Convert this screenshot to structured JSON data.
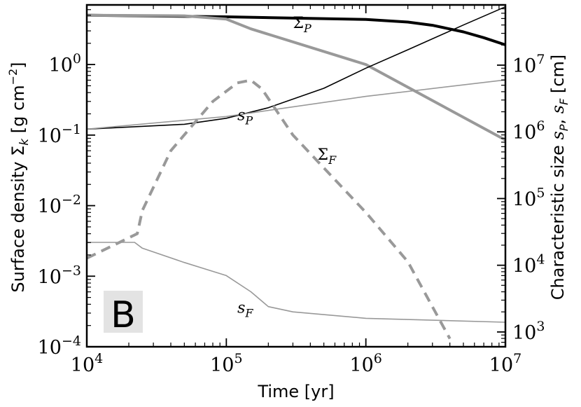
{
  "chart_data": {
    "type": "line",
    "panel_label": "B",
    "xlabel": "Time [yr]",
    "x_scale": "log",
    "xlim": [
      10000,
      10000000
    ],
    "x_ticks": [
      {
        "value": 10000,
        "base": "10",
        "exp": "4"
      },
      {
        "value": 100000,
        "base": "10",
        "exp": "5"
      },
      {
        "value": 1000000,
        "base": "10",
        "exp": "6"
      },
      {
        "value": 10000000,
        "base": "10",
        "exp": "7"
      }
    ],
    "y_left": {
      "label": "Surface density Σ_k [g cm^-2]",
      "label_parts": {
        "main": "Surface density Σ",
        "sub": "k",
        "bracket": " [g cm",
        "sup": "−2",
        "close": "]"
      },
      "scale": "log",
      "lim": [
        0.0001,
        7
      ],
      "ticks": [
        {
          "value": 1,
          "base": "10",
          "exp": "0"
        },
        {
          "value": 0.1,
          "base": "10",
          "exp": "−1"
        },
        {
          "value": 0.01,
          "base": "10",
          "exp": "−2"
        },
        {
          "value": 0.001,
          "base": "10",
          "exp": "−3"
        },
        {
          "value": 0.0001,
          "base": "10",
          "exp": "−4"
        }
      ]
    },
    "y_right": {
      "label": "Characteristic size s_P, s_F [cm]",
      "label_parts": {
        "main": "Characteristic size ",
        "var1": "s",
        "sub1": "P",
        "comma": ", ",
        "var2": "s",
        "sub2": "F",
        "bracket": " [cm]"
      },
      "scale": "log",
      "lim": [
        600,
        80000000
      ],
      "ticks": [
        {
          "value": 1000,
          "base": "10",
          "exp": "3"
        },
        {
          "value": 10000,
          "base": "10",
          "exp": "4"
        },
        {
          "value": 100000,
          "base": "10",
          "exp": "5"
        },
        {
          "value": 1000000,
          "base": "10",
          "exp": "6"
        },
        {
          "value": 10000000,
          "base": "10",
          "exp": "7"
        }
      ]
    },
    "series": [
      {
        "name": "Σ_P",
        "label_main": "Σ",
        "label_sub": "P",
        "axis": "left",
        "color": "#000000",
        "width": 4.0,
        "dash": "",
        "x": [
          10000,
          100000,
          1000000,
          2000000,
          3000000,
          5000000,
          7000000,
          10000000
        ],
        "y": [
          5.0,
          4.75,
          4.35,
          4.0,
          3.6,
          2.9,
          2.4,
          1.9
        ]
      },
      {
        "name": "Σ_P (gray)",
        "axis": "left",
        "color": "#999999",
        "width": 4.0,
        "dash": "",
        "x": [
          10000,
          50000,
          100000,
          150000,
          1000000,
          10000000
        ],
        "y": [
          5.0,
          4.9,
          4.4,
          3.2,
          1.0,
          0.085
        ]
      },
      {
        "name": "s_P",
        "label_main": "s",
        "label_sub": "P",
        "axis": "right",
        "color": "#000000",
        "width": 1.6,
        "dash": "",
        "x": [
          10000,
          50000,
          100000,
          200000,
          500000,
          1000000,
          2000000,
          5000000,
          10000000
        ],
        "y": [
          1100000,
          1300000,
          1600000,
          2300000,
          4500000,
          9000000,
          17000000,
          40000000,
          75000000
        ]
      },
      {
        "name": "s_P (gray)",
        "axis": "right",
        "color": "#999999",
        "width": 1.6,
        "dash": "",
        "x": [
          10000,
          100000,
          1000000,
          10000000
        ],
        "y": [
          1100000,
          1700000,
          3400000,
          6000000
        ]
      },
      {
        "name": "Σ_F",
        "label_main": "Σ",
        "label_sub": "F",
        "axis": "left",
        "color": "#999999",
        "width": 4.0,
        "dash": "14,9",
        "x": [
          10000,
          20000,
          23000,
          25000,
          40000,
          80000,
          120000,
          150000,
          180000,
          300000,
          1000000,
          2000000,
          4000000
        ],
        "y": [
          0.0018,
          0.0035,
          0.004,
          0.0085,
          0.06,
          0.3,
          0.55,
          0.6,
          0.45,
          0.1,
          0.008,
          0.0016,
          0.00013
        ]
      },
      {
        "name": "s_F",
        "label_main": "s",
        "label_sub": "F",
        "axis": "right",
        "color": "#999999",
        "width": 1.6,
        "dash": "",
        "x": [
          10000,
          22000,
          25000,
          50000,
          100000,
          150000,
          200000,
          300000,
          1000000,
          10000000
        ],
        "y": [
          22000,
          22000,
          18000,
          11000,
          7000,
          4000,
          2400,
          2000,
          1600,
          1400
        ]
      }
    ],
    "annotations": [
      {
        "series": "Σ_P",
        "main": "Σ",
        "sub": "P",
        "x": 300000,
        "axis": "left",
        "y": 3.3
      },
      {
        "series": "s_P",
        "main": "s",
        "sub": "P",
        "x": 120000,
        "axis": "right",
        "y": 1500000
      },
      {
        "series": "Σ_F",
        "main": "Σ",
        "sub": "F",
        "x": 450000,
        "axis": "left",
        "y": 0.045
      },
      {
        "series": "s_F",
        "main": "s",
        "sub": "F",
        "x": 120000,
        "axis": "right",
        "y": 1950
      }
    ],
    "grid": false,
    "legend": "none"
  }
}
